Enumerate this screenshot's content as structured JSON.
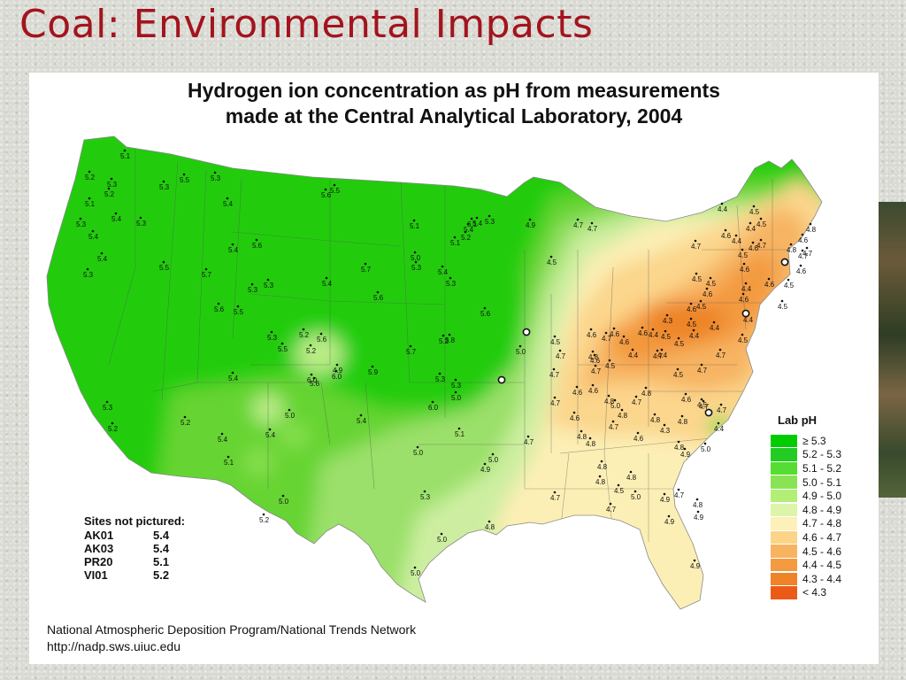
{
  "slide": {
    "title": "Coal: Environmental Impacts"
  },
  "map": {
    "title_line1": "Hydrogen ion concentration as pH from measurements",
    "title_line2": "made at the Central Analytical Laboratory, 2004",
    "legend": {
      "title": "Lab pH",
      "entries": [
        {
          "label": "≥ 5.3",
          "color": "#00cc00"
        },
        {
          "label": "5.2 - 5.3",
          "color": "#22cc22"
        },
        {
          "label": "5.1 - 5.2",
          "color": "#55dd33"
        },
        {
          "label": "5.0 - 5.1",
          "color": "#88e455"
        },
        {
          "label": "4.9 - 5.0",
          "color": "#b3ee77"
        },
        {
          "label": "4.8 - 4.9",
          "color": "#ddf5a8"
        },
        {
          "label": "4.7 - 4.8",
          "color": "#fdf0b8"
        },
        {
          "label": "4.6 - 4.7",
          "color": "#fbd488"
        },
        {
          "label": "4.5 - 4.6",
          "color": "#f7b460"
        },
        {
          "label": "4.4 - 4.5",
          "color": "#f49a40"
        },
        {
          "label": "4.3 - 4.4",
          "color": "#f08228"
        },
        {
          "label": "< 4.3",
          "color": "#ec5a18"
        }
      ]
    },
    "sites_not_pictured": {
      "title": "Sites not pictured:",
      "rows": [
        {
          "code": "AK01",
          "value": "5.4"
        },
        {
          "code": "AK03",
          "value": "5.4"
        },
        {
          "code": "PR20",
          "value": "5.1"
        },
        {
          "code": "VI01",
          "value": "5.2"
        }
      ]
    },
    "site_values": [
      "5.1",
      "5.2",
      "5.3",
      "5.1",
      "5.2",
      "5.3",
      "5.5",
      "5.3",
      "5.4",
      "5.3",
      "5.4",
      "5.4",
      "5.3",
      "5.3",
      "5.5",
      "5.7",
      "5.6",
      "5.6",
      "5.5",
      "5.4",
      "5.4",
      "5.7",
      "5.3",
      "5.3",
      "5.4",
      "5.6",
      "5.5",
      "5.2",
      "5.6",
      "5.3",
      "5.2",
      "4.9",
      "5.6",
      "5.5",
      "6.0",
      "5.6",
      "5.3",
      "5.0",
      "5.1",
      "5.4",
      "6.1",
      "5.3",
      "5.4",
      "5.2",
      "5.1",
      "5.3",
      "5.8",
      "5.3",
      "5.2",
      "5.3",
      "5.0",
      "5.6",
      "5.0",
      "5.4",
      "6.0",
      "5.9",
      "6.0",
      "5.7",
      "5.4",
      "5.4",
      "5.0",
      "5.0",
      "5.3",
      "5.1",
      "5.0",
      "4.9",
      "4.8",
      "5.0",
      "5.0",
      "5.0",
      "4.7",
      "4.8",
      "4.8",
      "4.8",
      "4.9",
      "5.0",
      "4.9",
      "4.7",
      "4.8",
      "4.9",
      "4.9",
      "5.4",
      "5.2",
      "5.3",
      "5.2",
      "5.4",
      "5.1",
      "5.2",
      "4.9",
      "4.7",
      "4.7",
      "4.5",
      "4.6",
      "4.5",
      "4.7",
      "4.8",
      "4.7",
      "4.8",
      "4.6",
      "4.7",
      "4.6",
      "4.7",
      "4.5",
      "4.6",
      "4.6",
      "4.6",
      "4.4",
      "4.4",
      "4.4",
      "4.3",
      "4.5",
      "4.4",
      "4.5",
      "4.5",
      "4.6",
      "4.4",
      "4.5",
      "4.5",
      "4.6",
      "4.6",
      "4.7",
      "4.7",
      "4.6",
      "4.8",
      "4.7",
      "4.8",
      "4.6",
      "4.5",
      "4.6",
      "4.4",
      "4.6",
      "4.5",
      "4.4",
      "4.5",
      "4.7",
      "4.7",
      "4.5",
      "4.6",
      "4.7",
      "4.8",
      "4.7",
      "4.8",
      "4.8",
      "4.8",
      "4.6",
      "4.7",
      "4.7",
      "4.6",
      "4.8",
      "5.0",
      "4.7",
      "4.8",
      "4.8",
      "4.7",
      "4.9",
      "5.0",
      "4.7",
      "4.5",
      "4.6",
      "4.3",
      "4.4",
      "4.5",
      "4.7",
      "4.6",
      "4.5",
      "4.5",
      "4.7",
      "4.4",
      "4.6",
      "4.4",
      "4.5",
      "4.5",
      "4.4"
    ],
    "credit_line1": "National Atmospheric Deposition Program/National Trends Network",
    "credit_line2": "http://nadp.sws.uiuc.edu"
  }
}
